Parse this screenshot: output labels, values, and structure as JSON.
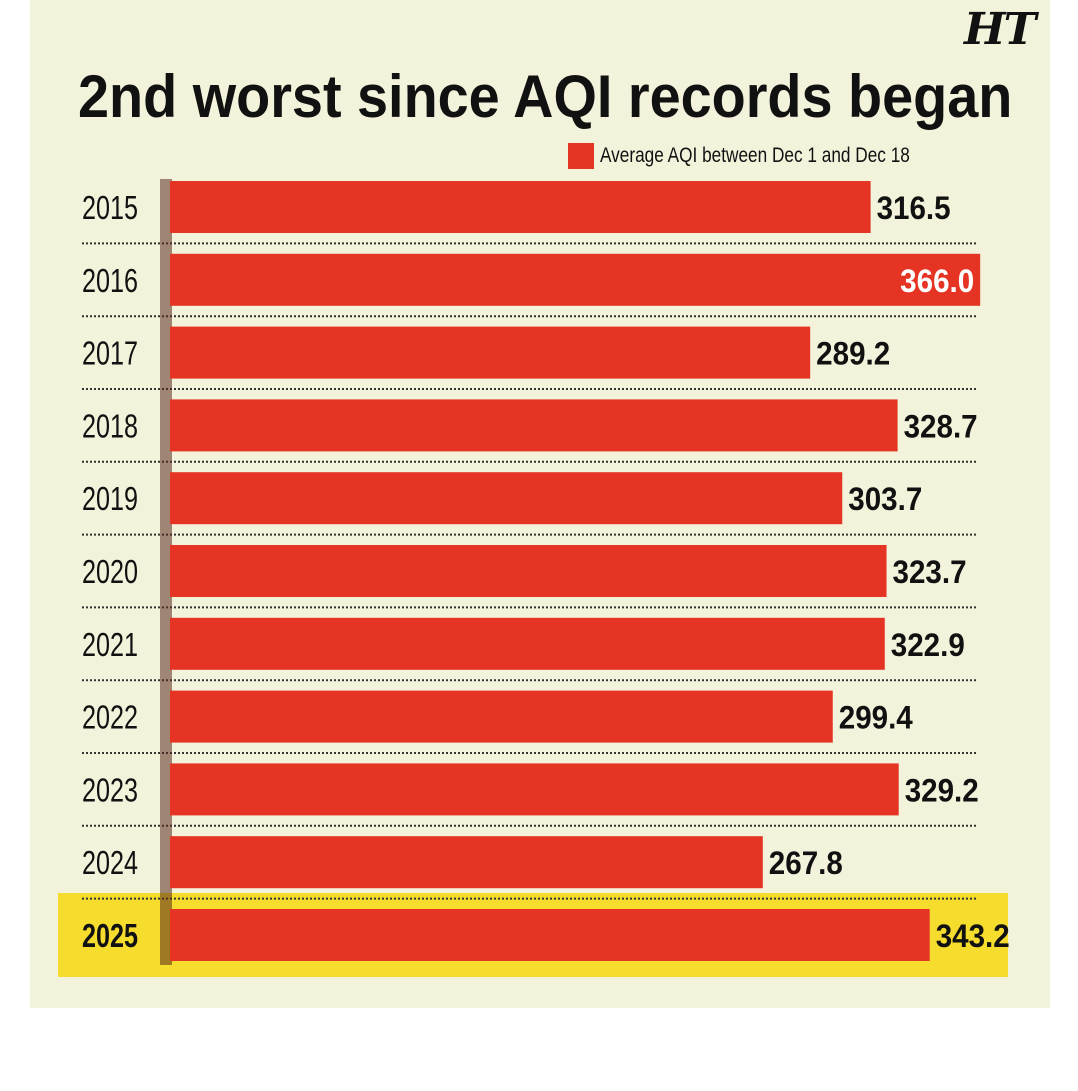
{
  "logo_text": "HT",
  "accent_color": "#e53423",
  "highlight_color": "#f6dc2c",
  "chart_data": {
    "type": "bar",
    "orientation": "horizontal",
    "title": "2nd worst since AQI records began",
    "legend": "Average AQI between Dec 1 and Dec 18",
    "legend_position": "top-right",
    "categories": [
      "2015",
      "2016",
      "2017",
      "2018",
      "2019",
      "2020",
      "2021",
      "2022",
      "2023",
      "2024",
      "2025"
    ],
    "values": [
      316.5,
      366.0,
      289.2,
      328.7,
      303.7,
      323.7,
      322.9,
      299.4,
      329.2,
      267.8,
      343.2
    ],
    "labels": [
      "316.5",
      "366.0",
      "289.2",
      "328.7",
      "303.7",
      "323.7",
      "322.9",
      "299.4",
      "329.2",
      "267.8",
      "343.2"
    ],
    "highlight_category": "2025",
    "max_category": "2016",
    "grid": false
  }
}
